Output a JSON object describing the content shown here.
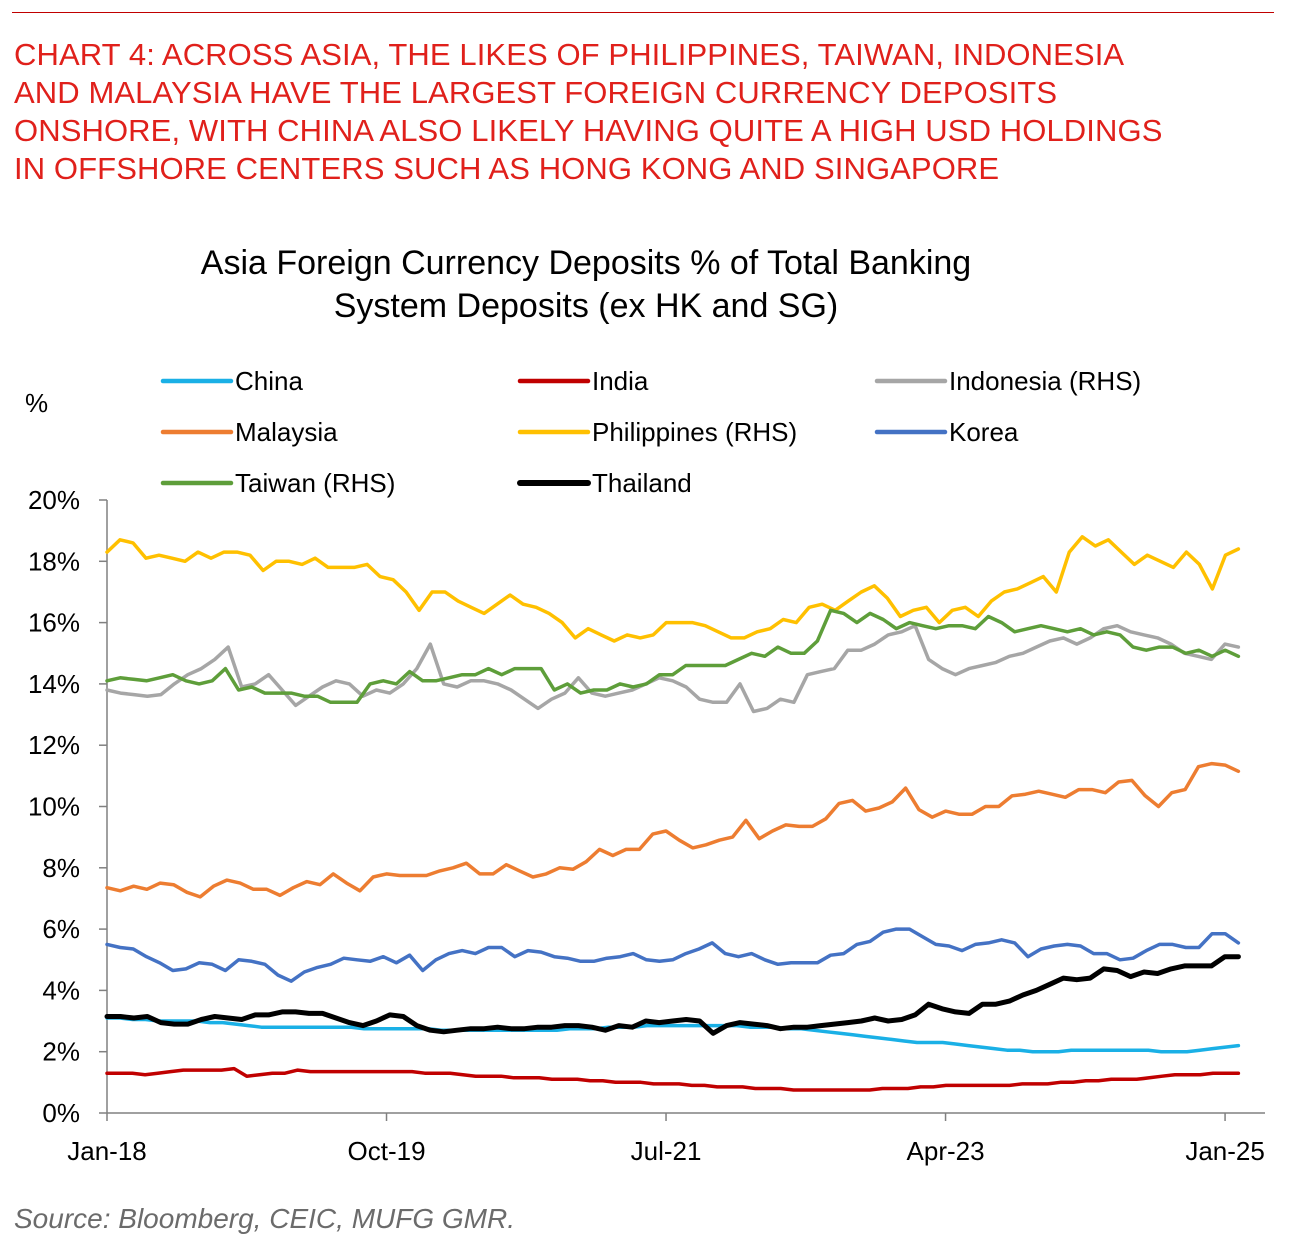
{
  "headline": {
    "lines": [
      "CHART 4: ACROSS ASIA, THE LIKES OF PHILIPPINES, TAIWAN, INDONESIA",
      "AND MALAYSIA HAVE THE LARGEST FOREIGN CURRENCY DEPOSITS",
      "ONSHORE, WITH CHINA ALSO LIKELY HAVING QUITE A HIGH USD HOLDINGS",
      "IN OFFSHORE CENTERS SUCH AS HONG KONG AND SINGAPORE"
    ],
    "color": "#e0201b"
  },
  "source": "Source: Bloomberg, CEIC, MUFG GMR.",
  "chart_data": {
    "type": "line",
    "title_lines": [
      "Asia Foreign Currency Deposits % of Total Banking",
      "System Deposits (ex HK and SG)"
    ],
    "ylabel": "%",
    "xlabel": "",
    "x_start": "Jan-18",
    "x_end": "Feb-25",
    "xlim": [
      "Jan-18",
      "Apr-25"
    ],
    "ylim": [
      0,
      20
    ],
    "y_ticks": [
      "0%",
      "2%",
      "4%",
      "6%",
      "8%",
      "10%",
      "12%",
      "14%",
      "16%",
      "18%",
      "20%"
    ],
    "x_ticks": [
      {
        "label": "Jan-18",
        "month": 0
      },
      {
        "label": "Oct-19",
        "month": 21
      },
      {
        "label": "Jul-21",
        "month": 42
      },
      {
        "label": "Apr-23",
        "month": 63
      },
      {
        "label": "Jan-25",
        "month": 84
      }
    ],
    "grid": false,
    "legend_position": "top",
    "series": [
      {
        "name": "China",
        "color": "#1ab0e6",
        "width": 3.5,
        "values": [
          3.1,
          3.1,
          3.05,
          3.05,
          3.0,
          3.0,
          3.0,
          3.0,
          2.95,
          2.95,
          2.9,
          2.85,
          2.8,
          2.8,
          2.8,
          2.8,
          2.8,
          2.8,
          2.8,
          2.8,
          2.75,
          2.75,
          2.75,
          2.75,
          2.75,
          2.75,
          2.7,
          2.7,
          2.7,
          2.7,
          2.7,
          2.7,
          2.7,
          2.7,
          2.7,
          2.7,
          2.75,
          2.75,
          2.75,
          2.8,
          2.8,
          2.8,
          2.85,
          2.85,
          2.85,
          2.85,
          2.85,
          2.85,
          2.85,
          2.85,
          2.8,
          2.8,
          2.8,
          2.75,
          2.75,
          2.7,
          2.65,
          2.6,
          2.55,
          2.5,
          2.45,
          2.4,
          2.35,
          2.3,
          2.3,
          2.3,
          2.25,
          2.2,
          2.15,
          2.1,
          2.05,
          2.05,
          2.0,
          2.0,
          2.0,
          2.05,
          2.05,
          2.05,
          2.05,
          2.05,
          2.05,
          2.05,
          2.0,
          2.0,
          2.0,
          2.05,
          2.1,
          2.15,
          2.2
        ]
      },
      {
        "name": "India",
        "color": "#c00000",
        "width": 3.5,
        "values": [
          1.3,
          1.3,
          1.3,
          1.25,
          1.3,
          1.35,
          1.4,
          1.4,
          1.4,
          1.4,
          1.45,
          1.2,
          1.25,
          1.3,
          1.3,
          1.4,
          1.35,
          1.35,
          1.35,
          1.35,
          1.35,
          1.35,
          1.35,
          1.35,
          1.35,
          1.3,
          1.3,
          1.3,
          1.25,
          1.2,
          1.2,
          1.2,
          1.15,
          1.15,
          1.15,
          1.1,
          1.1,
          1.1,
          1.05,
          1.05,
          1.0,
          1.0,
          1.0,
          0.95,
          0.95,
          0.95,
          0.9,
          0.9,
          0.85,
          0.85,
          0.85,
          0.8,
          0.8,
          0.8,
          0.75,
          0.75,
          0.75,
          0.75,
          0.75,
          0.75,
          0.75,
          0.8,
          0.8,
          0.8,
          0.85,
          0.85,
          0.9,
          0.9,
          0.9,
          0.9,
          0.9,
          0.9,
          0.95,
          0.95,
          0.95,
          1.0,
          1.0,
          1.05,
          1.05,
          1.1,
          1.1,
          1.1,
          1.15,
          1.2,
          1.25,
          1.25,
          1.25,
          1.3,
          1.3,
          1.3
        ]
      },
      {
        "name": "Indonesia (RHS)",
        "color": "#a6a6a6",
        "width": 3.5,
        "axis": "right",
        "values": [
          13.8,
          13.7,
          13.65,
          13.6,
          13.65,
          14.0,
          14.3,
          14.5,
          14.8,
          15.2,
          13.9,
          14.0,
          14.3,
          13.8,
          13.3,
          13.6,
          13.9,
          14.1,
          14.0,
          13.6,
          13.8,
          13.7,
          14.0,
          14.5,
          15.3,
          14.0,
          13.9,
          14.1,
          14.1,
          14.0,
          13.8,
          13.5,
          13.2,
          13.5,
          13.7,
          14.2,
          13.7,
          13.6,
          13.7,
          13.8,
          14.0,
          14.2,
          14.1,
          13.9,
          13.5,
          13.4,
          13.4,
          14.0,
          13.1,
          13.2,
          13.5,
          13.4,
          14.3,
          14.4,
          14.5,
          15.1,
          15.1,
          15.3,
          15.6,
          15.7,
          15.9,
          14.8,
          14.5,
          14.3,
          14.5,
          14.6,
          14.7,
          14.9,
          15.0,
          15.2,
          15.4,
          15.5,
          15.3,
          15.5,
          15.8,
          15.9,
          15.7,
          15.6,
          15.5,
          15.3,
          15.0,
          14.9,
          14.8,
          15.3,
          15.2
        ]
      },
      {
        "name": "Malaysia",
        "color": "#ed7d31",
        "width": 3.5,
        "values": [
          7.35,
          7.25,
          7.4,
          7.3,
          7.5,
          7.45,
          7.2,
          7.05,
          7.4,
          7.6,
          7.5,
          7.3,
          7.3,
          7.1,
          7.35,
          7.55,
          7.45,
          7.8,
          7.5,
          7.25,
          7.7,
          7.8,
          7.75,
          7.75,
          7.75,
          7.9,
          8.0,
          8.15,
          7.8,
          7.8,
          8.1,
          7.9,
          7.7,
          7.8,
          8.0,
          7.95,
          8.2,
          8.6,
          8.4,
          8.6,
          8.6,
          9.1,
          9.2,
          8.9,
          8.65,
          8.75,
          8.9,
          9.0,
          9.55,
          8.95,
          9.2,
          9.4,
          9.35,
          9.35,
          9.6,
          10.1,
          10.2,
          9.85,
          9.95,
          10.15,
          10.6,
          9.9,
          9.65,
          9.85,
          9.75,
          9.75,
          10.0,
          10.0,
          10.35,
          10.4,
          10.5,
          10.4,
          10.3,
          10.55,
          10.55,
          10.45,
          10.8,
          10.85,
          10.35,
          10.0,
          10.45,
          10.55,
          11.3,
          11.4,
          11.35,
          11.15
        ]
      },
      {
        "name": "Philippines (RHS)",
        "color": "#ffc000",
        "width": 3.5,
        "axis": "right",
        "values": [
          18.3,
          18.7,
          18.6,
          18.1,
          18.2,
          18.1,
          18.0,
          18.3,
          18.1,
          18.3,
          18.3,
          18.2,
          17.7,
          18.0,
          18.0,
          17.9,
          18.1,
          17.8,
          17.8,
          17.8,
          17.9,
          17.5,
          17.4,
          17.0,
          16.4,
          17.0,
          17.0,
          16.7,
          16.5,
          16.3,
          16.6,
          16.9,
          16.6,
          16.5,
          16.3,
          16.0,
          15.5,
          15.8,
          15.6,
          15.4,
          15.6,
          15.5,
          15.6,
          16.0,
          16.0,
          16.0,
          15.9,
          15.7,
          15.5,
          15.5,
          15.7,
          15.8,
          16.1,
          16.0,
          16.5,
          16.6,
          16.4,
          16.7,
          17.0,
          17.2,
          16.8,
          16.2,
          16.4,
          16.5,
          16.0,
          16.4,
          16.5,
          16.2,
          16.7,
          17.0,
          17.1,
          17.3,
          17.5,
          17.0,
          18.3,
          18.8,
          18.5,
          18.7,
          18.3,
          17.9,
          18.2,
          18.0,
          17.8,
          18.3,
          17.9,
          17.1,
          18.2,
          18.4
        ]
      },
      {
        "name": "Korea",
        "color": "#4472c4",
        "width": 3.5,
        "values": [
          5.5,
          5.4,
          5.35,
          5.1,
          4.9,
          4.65,
          4.7,
          4.9,
          4.85,
          4.65,
          5.0,
          4.95,
          4.85,
          4.5,
          4.3,
          4.6,
          4.75,
          4.85,
          5.05,
          5.0,
          4.95,
          5.1,
          4.9,
          5.15,
          4.65,
          5.0,
          5.2,
          5.3,
          5.2,
          5.4,
          5.4,
          5.1,
          5.3,
          5.25,
          5.1,
          5.05,
          4.95,
          4.95,
          5.05,
          5.1,
          5.2,
          5.0,
          4.95,
          5.0,
          5.2,
          5.35,
          5.55,
          5.2,
          5.1,
          5.2,
          5.0,
          4.85,
          4.9,
          4.9,
          4.9,
          5.15,
          5.2,
          5.5,
          5.6,
          5.9,
          6.0,
          6.0,
          5.75,
          5.5,
          5.45,
          5.3,
          5.5,
          5.55,
          5.65,
          5.55,
          5.1,
          5.35,
          5.45,
          5.5,
          5.45,
          5.2,
          5.2,
          5.0,
          5.05,
          5.3,
          5.5,
          5.5,
          5.4,
          5.4,
          5.85,
          5.85,
          5.55
        ]
      },
      {
        "name": "Taiwan (RHS)",
        "color": "#5e9e3a",
        "width": 3.5,
        "axis": "right",
        "values": [
          14.1,
          14.2,
          14.15,
          14.1,
          14.2,
          14.3,
          14.1,
          14.0,
          14.1,
          14.5,
          13.8,
          13.9,
          13.7,
          13.7,
          13.7,
          13.6,
          13.6,
          13.4,
          13.4,
          13.4,
          14.0,
          14.1,
          14.0,
          14.4,
          14.1,
          14.1,
          14.2,
          14.3,
          14.3,
          14.5,
          14.3,
          14.5,
          14.5,
          14.5,
          13.8,
          14.0,
          13.7,
          13.8,
          13.8,
          14.0,
          13.9,
          14.0,
          14.3,
          14.3,
          14.6,
          14.6,
          14.6,
          14.6,
          14.8,
          15.0,
          14.9,
          15.2,
          15.0,
          15.0,
          15.4,
          16.4,
          16.3,
          16.0,
          16.3,
          16.1,
          15.8,
          16.0,
          15.9,
          15.8,
          15.9,
          15.9,
          15.8,
          16.2,
          16.0,
          15.7,
          15.8,
          15.9,
          15.8,
          15.7,
          15.8,
          15.6,
          15.7,
          15.6,
          15.2,
          15.1,
          15.2,
          15.2,
          15.0,
          15.1,
          14.9,
          15.1,
          14.9
        ]
      },
      {
        "name": "Thailand",
        "color": "#000000",
        "width": 5,
        "values": [
          3.15,
          3.15,
          3.1,
          3.15,
          2.95,
          2.9,
          2.9,
          3.05,
          3.15,
          3.1,
          3.05,
          3.2,
          3.2,
          3.3,
          3.3,
          3.25,
          3.25,
          3.1,
          2.95,
          2.85,
          3.0,
          3.2,
          3.15,
          2.85,
          2.7,
          2.65,
          2.7,
          2.75,
          2.75,
          2.8,
          2.75,
          2.75,
          2.8,
          2.8,
          2.85,
          2.85,
          2.8,
          2.7,
          2.85,
          2.8,
          3.0,
          2.95,
          3.0,
          3.05,
          3.0,
          2.6,
          2.85,
          2.95,
          2.9,
          2.85,
          2.75,
          2.8,
          2.8,
          2.85,
          2.9,
          2.95,
          3.0,
          3.1,
          3.0,
          3.05,
          3.2,
          3.55,
          3.4,
          3.3,
          3.25,
          3.55,
          3.55,
          3.65,
          3.85,
          4.0,
          4.2,
          4.4,
          4.35,
          4.4,
          4.7,
          4.65,
          4.45,
          4.6,
          4.55,
          4.7,
          4.8,
          4.8,
          4.8,
          5.1,
          5.1
        ]
      }
    ]
  }
}
